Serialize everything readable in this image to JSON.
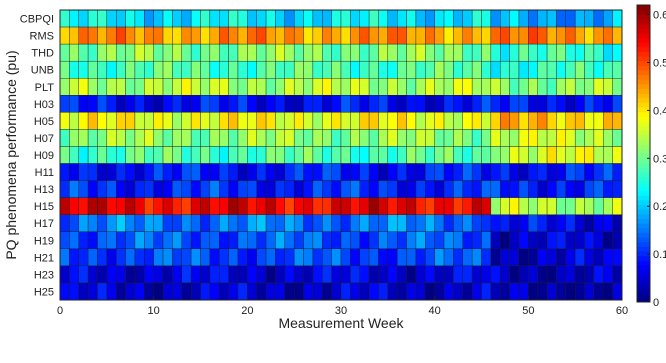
{
  "chart_data": {
    "type": "heatmap",
    "title": "",
    "xlabel": "Measurement Week",
    "ylabel": "PQ phenomena performance (pu)",
    "x_ticks": [
      0,
      10,
      20,
      30,
      40,
      50,
      60
    ],
    "xlim": [
      0,
      60
    ],
    "weeks": 60,
    "rows": [
      "CBPQI",
      "RMS",
      "THD",
      "UNB",
      "PLT",
      "H03",
      "H05",
      "H07",
      "H09",
      "H11",
      "H13",
      "H15",
      "H17",
      "H19",
      "H21",
      "H23",
      "H25"
    ],
    "colorbar": {
      "min": 0,
      "max": 0.62,
      "ticks": [
        0,
        0.1,
        0.2,
        0.3,
        0.4,
        0.5,
        0.6
      ],
      "colormap": "jet"
    },
    "row_profiles": [
      {
        "row": "CBPQI",
        "weeks_1_46": 0.22,
        "weeks_47_60": 0.18
      },
      {
        "row": "RMS",
        "weeks_1_46": 0.45,
        "weeks_47_60": 0.46
      },
      {
        "row": "THD",
        "weeks_1_46": 0.31,
        "weeks_47_60": 0.26
      },
      {
        "row": "UNB",
        "weeks_1_46": 0.28,
        "weeks_47_60": 0.26
      },
      {
        "row": "PLT",
        "weeks_1_46": 0.34,
        "weeks_47_60": 0.32
      },
      {
        "row": "H03",
        "weeks_1_46": 0.08,
        "weeks_47_60": 0.09
      },
      {
        "row": "H05",
        "weeks_1_46": 0.38,
        "weeks_47_60": 0.42
      },
      {
        "row": "H07",
        "weeks_1_46": 0.32,
        "weeks_47_60": 0.35
      },
      {
        "row": "H09",
        "weeks_1_46": 0.28,
        "weeks_47_60": 0.36
      },
      {
        "row": "H11",
        "weeks_1_46": 0.09,
        "weeks_47_60": 0.09
      },
      {
        "row": "H13",
        "weeks_1_46": 0.1,
        "weeks_47_60": 0.1
      },
      {
        "row": "H15",
        "weeks_1_46": 0.55,
        "weeks_47_60": 0.34
      },
      {
        "row": "H17",
        "weeks_1_46": 0.15,
        "weeks_47_60": 0.07
      },
      {
        "row": "H19",
        "weeks_1_46": 0.13,
        "weeks_47_60": 0.05
      },
      {
        "row": "H21",
        "weeks_1_46": 0.12,
        "weeks_47_60": 0.05
      },
      {
        "row": "H23",
        "weeks_1_46": 0.06,
        "weeks_47_60": 0.04
      },
      {
        "row": "H25",
        "weeks_1_46": 0.05,
        "weeks_47_60": 0.03
      }
    ]
  }
}
